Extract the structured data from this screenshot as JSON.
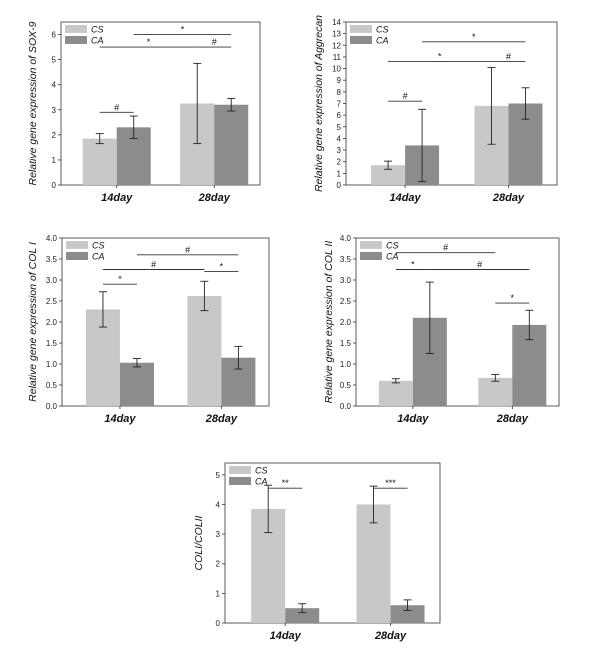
{
  "colors": {
    "cs": "#c8c8c8",
    "ca": "#8c8c8c",
    "axis": "#333333",
    "sig": "#333333"
  },
  "chart_data": [
    {
      "type": "bar",
      "ylabel": "Relative gene expression of SOX-9",
      "categories": [
        "14day",
        "28day"
      ],
      "ylim": [
        0,
        6.5
      ],
      "yticks": [
        0,
        1,
        2,
        3,
        4,
        5,
        6
      ],
      "yticklabels": [
        "0",
        "1",
        "2",
        "3",
        "4",
        "5",
        "6"
      ],
      "series": [
        {
          "name": "CS",
          "values": [
            1.85,
            3.25
          ],
          "errors": [
            0.2,
            1.6
          ]
        },
        {
          "name": "CA",
          "values": [
            2.3,
            3.2
          ],
          "errors": [
            0.45,
            0.25
          ]
        }
      ],
      "significance": [
        {
          "label": "#",
          "from": [
            0,
            0
          ],
          "to": [
            0,
            1
          ],
          "y": 2.9
        },
        {
          "label": "*",
          "from": [
            0,
            0
          ],
          "to": [
            1,
            0
          ],
          "y": 5.5
        },
        {
          "label": "#",
          "from": [
            1,
            0
          ],
          "to": [
            1,
            1
          ],
          "y": 5.5
        },
        {
          "label": "*",
          "from": [
            0,
            1
          ],
          "to": [
            1,
            1
          ],
          "y": 6.0
        }
      ],
      "legend": [
        "CS",
        "CA"
      ]
    },
    {
      "type": "bar",
      "ylabel": "Relative gene expression of Aggrecan",
      "categories": [
        "14day",
        "28day"
      ],
      "ylim": [
        0,
        14
      ],
      "yticks": [
        0,
        1,
        2,
        3,
        4,
        5,
        6,
        7,
        8,
        9,
        10,
        11,
        12,
        13,
        14
      ],
      "yticklabels": [
        "0",
        "1",
        "2",
        "3",
        "4",
        "5",
        "6",
        "7",
        "8",
        "9",
        "10",
        "11",
        "12",
        "13",
        "14"
      ],
      "series": [
        {
          "name": "CS",
          "values": [
            1.7,
            6.8
          ],
          "errors": [
            0.35,
            3.3
          ]
        },
        {
          "name": "CA",
          "values": [
            3.4,
            7.0
          ],
          "errors": [
            3.1,
            1.35
          ]
        }
      ],
      "significance": [
        {
          "label": "#",
          "from": [
            0,
            0
          ],
          "to": [
            0,
            1
          ],
          "y": 7.2
        },
        {
          "label": "*",
          "from": [
            0,
            0
          ],
          "to": [
            1,
            0
          ],
          "y": 10.6
        },
        {
          "label": "#",
          "from": [
            1,
            0
          ],
          "to": [
            1,
            1
          ],
          "y": 10.6
        },
        {
          "label": "*",
          "from": [
            0,
            1
          ],
          "to": [
            1,
            1
          ],
          "y": 12.3
        }
      ],
      "legend": [
        "CS",
        "CA"
      ]
    },
    {
      "type": "bar",
      "ylabel": "Relative gene expression of COL I",
      "categories": [
        "14day",
        "28day"
      ],
      "ylim": [
        0,
        4
      ],
      "yticks": [
        0,
        0.5,
        1,
        1.5,
        2,
        2.5,
        3,
        3.5,
        4
      ],
      "yticklabels": [
        "0.0",
        "0.5",
        "1.0",
        "1.5",
        "2.0",
        "2.5",
        "3.0",
        "3.5",
        "4.0"
      ],
      "series": [
        {
          "name": "CS",
          "values": [
            2.3,
            2.62
          ],
          "errors": [
            0.42,
            0.35
          ]
        },
        {
          "name": "CA",
          "values": [
            1.03,
            1.15
          ],
          "errors": [
            0.1,
            0.27
          ]
        }
      ],
      "significance": [
        {
          "label": "*",
          "from": [
            0,
            0
          ],
          "to": [
            0,
            1
          ],
          "y": 2.9
        },
        {
          "label": "*",
          "from": [
            1,
            0
          ],
          "to": [
            1,
            1
          ],
          "y": 3.2
        },
        {
          "label": "#",
          "from": [
            0,
            0
          ],
          "to": [
            1,
            0
          ],
          "y": 3.25
        },
        {
          "label": "#",
          "from": [
            0,
            1
          ],
          "to": [
            1,
            1
          ],
          "y": 3.6
        }
      ],
      "legend": [
        "CS",
        "CA"
      ]
    },
    {
      "type": "bar",
      "ylabel": "Relative gene expression of COL II",
      "categories": [
        "14day",
        "28day"
      ],
      "ylim": [
        0,
        4
      ],
      "yticks": [
        0,
        0.5,
        1,
        1.5,
        2,
        2.5,
        3,
        3.5,
        4
      ],
      "yticklabels": [
        "0.0",
        "0.5",
        "1.0",
        "1.5",
        "2.0",
        "2.5",
        "3.0",
        "3.5",
        "4.0"
      ],
      "series": [
        {
          "name": "CS",
          "values": [
            0.6,
            0.67
          ],
          "errors": [
            0.05,
            0.08
          ]
        },
        {
          "name": "CA",
          "values": [
            2.1,
            1.93
          ],
          "errors": [
            0.85,
            0.35
          ]
        }
      ],
      "significance": [
        {
          "label": "*",
          "from": [
            0,
            0
          ],
          "to": [
            0,
            1
          ],
          "y": 3.25
        },
        {
          "label": "*",
          "from": [
            1,
            0
          ],
          "to": [
            1,
            1
          ],
          "y": 2.45
        },
        {
          "label": "#",
          "from": [
            0,
            0
          ],
          "to": [
            1,
            0
          ],
          "y": 3.65
        },
        {
          "label": "#",
          "from": [
            0,
            1
          ],
          "to": [
            1,
            1
          ],
          "y": 3.25
        }
      ],
      "legend": [
        "CS",
        "CA"
      ]
    },
    {
      "type": "bar",
      "ylabel": "COLI/COLII",
      "categories": [
        "14day",
        "28day"
      ],
      "ylim": [
        0,
        5.4
      ],
      "yticks": [
        0,
        1,
        2,
        3,
        4,
        5
      ],
      "yticklabels": [
        "0",
        "1",
        "2",
        "3",
        "4",
        "5"
      ],
      "series": [
        {
          "name": "CS",
          "values": [
            3.85,
            4.0
          ],
          "errors": [
            0.8,
            0.62
          ]
        },
        {
          "name": "CA",
          "values": [
            0.5,
            0.6
          ],
          "errors": [
            0.15,
            0.18
          ]
        }
      ],
      "significance": [
        {
          "label": "**",
          "from": [
            0,
            0
          ],
          "to": [
            0,
            1
          ],
          "y": 4.55
        },
        {
          "label": "***",
          "from": [
            1,
            0
          ],
          "to": [
            1,
            1
          ],
          "y": 4.55
        }
      ],
      "legend": [
        "CS",
        "CA"
      ]
    }
  ]
}
